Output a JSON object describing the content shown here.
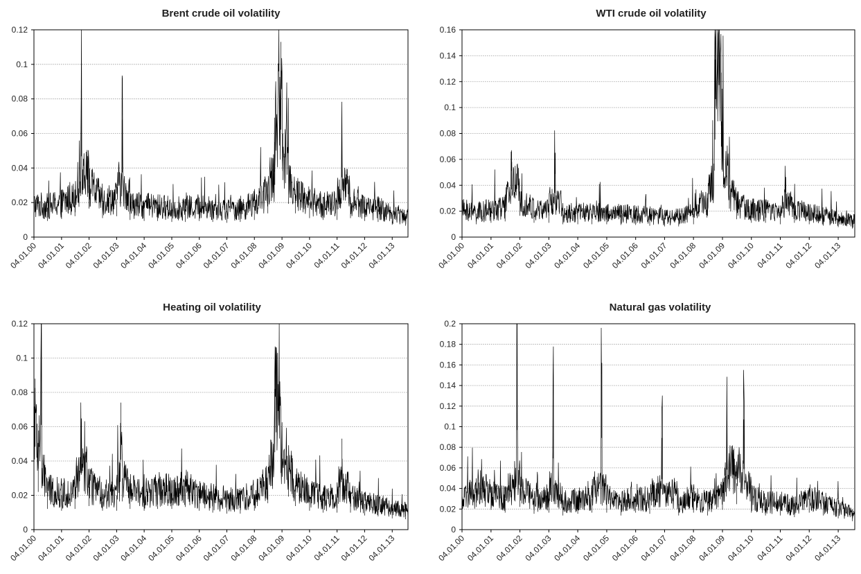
{
  "chart_data": [
    {
      "type": "line",
      "title": "Brent crude oil volatility",
      "xlabel": "",
      "ylabel": "",
      "ylim": [
        0,
        0.12
      ],
      "yticks": [
        "0",
        "0.02",
        "0.04",
        "0.06",
        "0.08",
        "0.1",
        "0.12"
      ],
      "xticks": [
        "04.01.00",
        "04.01.01",
        "04.01.02",
        "04.01.03",
        "04.01.04",
        "04.01.05",
        "04.01.06",
        "04.01.07",
        "04.01.08",
        "04.01.09",
        "04.01.10",
        "04.01.11",
        "04.01.12",
        "04.01.13"
      ],
      "grid": true,
      "series": [
        {
          "x": [
            "2000-01-04",
            "2000-07-01",
            "2001-01-04",
            "2001-07-01",
            "2001-09-21",
            "2002-01-04",
            "2002-07-01",
            "2003-01-04",
            "2003-03-20",
            "2003-07-01",
            "2004-01-04",
            "2004-07-01",
            "2005-01-04",
            "2005-07-01",
            "2006-01-04",
            "2006-07-01",
            "2007-01-04",
            "2007-07-01",
            "2008-01-04",
            "2008-07-01",
            "2008-10-01",
            "2008-12-20",
            "2009-01-15",
            "2009-04-01",
            "2009-07-01",
            "2010-01-04",
            "2010-07-01",
            "2011-01-04",
            "2011-03-10",
            "2011-07-01",
            "2012-01-04",
            "2012-07-01",
            "2013-01-04",
            "2013-07-01"
          ],
          "values": [
            0.018,
            0.017,
            0.019,
            0.022,
            0.085,
            0.03,
            0.02,
            0.022,
            0.068,
            0.018,
            0.017,
            0.017,
            0.016,
            0.016,
            0.017,
            0.016,
            0.015,
            0.016,
            0.018,
            0.025,
            0.055,
            0.113,
            0.06,
            0.035,
            0.025,
            0.02,
            0.018,
            0.018,
            0.063,
            0.02,
            0.017,
            0.016,
            0.013,
            0.012
          ]
        }
      ]
    },
    {
      "type": "line",
      "title": "WTI crude oil volatility",
      "xlabel": "",
      "ylabel": "",
      "ylim": [
        0,
        0.16
      ],
      "yticks": [
        "0",
        "0.02",
        "0.04",
        "0.06",
        "0.08",
        "0.1",
        "0.12",
        "0.14",
        "0.16"
      ],
      "xticks": [
        "04.01.00",
        "04.01.01",
        "04.01.02",
        "04.01.03",
        "04.01.04",
        "04.01.05",
        "04.01.06",
        "04.01.07",
        "04.01.08",
        "04.01.09",
        "04.01.10",
        "04.01.11",
        "04.01.12",
        "04.01.13"
      ],
      "grid": true,
      "series": [
        {
          "x": [
            "2000-01-04",
            "2000-07-01",
            "2001-01-04",
            "2001-07-01",
            "2001-09-21",
            "2002-01-04",
            "2002-07-01",
            "2003-01-04",
            "2003-03-20",
            "2003-07-01",
            "2004-01-04",
            "2004-07-01",
            "2005-01-04",
            "2005-07-01",
            "2006-01-04",
            "2006-07-01",
            "2007-01-04",
            "2007-07-01",
            "2008-01-04",
            "2008-07-01",
            "2008-10-01",
            "2008-12-20",
            "2009-01-15",
            "2009-04-01",
            "2009-07-01",
            "2010-01-04",
            "2010-07-01",
            "2011-01-04",
            "2011-03-10",
            "2011-07-01",
            "2012-01-04",
            "2012-07-01",
            "2013-01-04",
            "2013-07-01"
          ],
          "values": [
            0.02,
            0.018,
            0.02,
            0.022,
            0.067,
            0.03,
            0.02,
            0.02,
            0.062,
            0.018,
            0.018,
            0.018,
            0.018,
            0.017,
            0.017,
            0.016,
            0.015,
            0.015,
            0.018,
            0.03,
            0.137,
            0.127,
            0.07,
            0.04,
            0.025,
            0.02,
            0.02,
            0.018,
            0.04,
            0.02,
            0.018,
            0.016,
            0.014,
            0.012
          ]
        }
      ]
    },
    {
      "type": "line",
      "title": "Heating oil volatility",
      "xlabel": "",
      "ylabel": "",
      "ylim": [
        0,
        0.12
      ],
      "yticks": [
        "0",
        "0.02",
        "0.04",
        "0.06",
        "0.08",
        "0.1",
        "0.12"
      ],
      "xticks": [
        "04.01.00",
        "04.01.01",
        "04.01.02",
        "04.01.03",
        "04.01.04",
        "04.01.05",
        "04.01.06",
        "04.01.07",
        "04.01.08",
        "04.01.09",
        "04.01.10",
        "04.01.11",
        "04.01.12",
        "04.01.13"
      ],
      "grid": true,
      "series": [
        {
          "x": [
            "2000-01-04",
            "2000-01-20",
            "2000-03-01",
            "2000-04-10",
            "2000-07-01",
            "2001-01-04",
            "2001-07-01",
            "2001-09-21",
            "2002-01-04",
            "2002-07-01",
            "2003-01-04",
            "2003-03-01",
            "2003-03-20",
            "2003-07-01",
            "2004-01-04",
            "2004-07-01",
            "2005-01-04",
            "2005-07-01",
            "2006-01-04",
            "2006-07-01",
            "2007-01-04",
            "2007-07-01",
            "2008-01-04",
            "2008-07-01",
            "2008-10-01",
            "2008-12-20",
            "2009-04-01",
            "2009-07-01",
            "2010-01-04",
            "2010-07-01",
            "2011-01-04",
            "2011-03-10",
            "2011-07-01",
            "2012-01-04",
            "2012-07-01",
            "2013-01-04",
            "2013-07-01"
          ],
          "values": [
            0.05,
            0.088,
            0.04,
            0.111,
            0.022,
            0.02,
            0.022,
            0.058,
            0.025,
            0.02,
            0.02,
            0.074,
            0.03,
            0.022,
            0.02,
            0.022,
            0.022,
            0.024,
            0.02,
            0.018,
            0.017,
            0.017,
            0.02,
            0.028,
            0.082,
            0.06,
            0.035,
            0.025,
            0.02,
            0.018,
            0.018,
            0.053,
            0.018,
            0.015,
            0.014,
            0.012,
            0.011
          ]
        }
      ]
    },
    {
      "type": "line",
      "title": "Natural gas volatility",
      "xlabel": "",
      "ylabel": "",
      "ylim": [
        0,
        0.2
      ],
      "yticks": [
        "0",
        "0.02",
        "0.04",
        "0.06",
        "0.08",
        "0.1",
        "0.12",
        "0.14",
        "0.16",
        "0.18",
        "0.2"
      ],
      "xticks": [
        "04.01.00",
        "04.01.01",
        "04.01.02",
        "04.01.03",
        "04.01.04",
        "04.01.05",
        "04.01.06",
        "04.01.07",
        "04.01.08",
        "04.01.09",
        "04.01.10",
        "04.01.11",
        "04.01.12",
        "04.01.13"
      ],
      "grid": true,
      "series": [
        {
          "x": [
            "2000-01-04",
            "2000-07-01",
            "2001-01-04",
            "2001-07-01",
            "2001-12-01",
            "2002-01-04",
            "2002-07-01",
            "2003-01-04",
            "2003-02-25",
            "2003-07-01",
            "2004-01-04",
            "2004-07-01",
            "2004-11-01",
            "2005-01-04",
            "2005-07-01",
            "2006-01-04",
            "2006-07-01",
            "2006-12-01",
            "2007-07-01",
            "2008-01-04",
            "2008-07-01",
            "2009-01-04",
            "2009-03-01",
            "2009-07-01",
            "2009-10-01",
            "2010-01-04",
            "2010-07-01",
            "2011-01-04",
            "2011-07-01",
            "2012-01-04",
            "2012-07-01",
            "2013-01-04",
            "2013-07-01"
          ],
          "values": [
            0.025,
            0.04,
            0.035,
            0.03,
            0.176,
            0.04,
            0.028,
            0.03,
            0.126,
            0.025,
            0.028,
            0.03,
            0.162,
            0.03,
            0.025,
            0.03,
            0.028,
            0.089,
            0.025,
            0.03,
            0.025,
            0.035,
            0.106,
            0.045,
            0.107,
            0.03,
            0.025,
            0.025,
            0.022,
            0.03,
            0.025,
            0.02,
            0.015
          ]
        }
      ]
    }
  ]
}
